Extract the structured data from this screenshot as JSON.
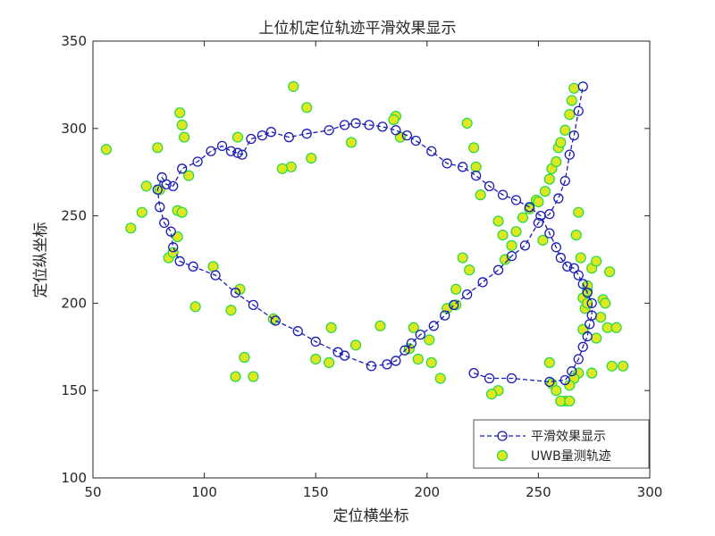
{
  "chart_data": {
    "type": "scatter",
    "title": "上位机定位轨迹平滑效果显示",
    "xlabel": "定位横坐标",
    "ylabel": "定位纵坐标",
    "xlim": [
      50,
      300
    ],
    "ylim": [
      100,
      350
    ],
    "xticks": [
      50,
      100,
      150,
      200,
      250,
      300
    ],
    "yticks": [
      100,
      150,
      200,
      250,
      300,
      350
    ],
    "x_tick_labels": [
      "50",
      "100",
      "150",
      "200",
      "250",
      "300"
    ],
    "y_tick_labels": [
      "100",
      "150",
      "200",
      "250",
      "300",
      "350"
    ],
    "grid": false,
    "box": true,
    "legend_position": "bottom-right",
    "series": [
      {
        "name": "平滑效果显示",
        "style": "dashed-line-circle-markers",
        "color": "#1c1cb4",
        "x": [
          221,
          228,
          238,
          255,
          262,
          265,
          268,
          270,
          272,
          273,
          274,
          274,
          272,
          270,
          268,
          266,
          263,
          260,
          258,
          255,
          251,
          246,
          240,
          234,
          228,
          222,
          216,
          209,
          202,
          195,
          191,
          186,
          180,
          174,
          168,
          163,
          156,
          146,
          138,
          130,
          126,
          121,
          117,
          115,
          112,
          108,
          103,
          97,
          90,
          86,
          83,
          81,
          79,
          80,
          82,
          85,
          86,
          89,
          95,
          105,
          114,
          122,
          132,
          142,
          150,
          160,
          163,
          175,
          182,
          186,
          190,
          193,
          197,
          203,
          208,
          212,
          218,
          225,
          232,
          238,
          244,
          250,
          255,
          259,
          262,
          264,
          266,
          268,
          270
        ],
        "y": [
          160,
          157,
          157,
          155,
          156,
          161,
          168,
          175,
          181,
          188,
          193,
          200,
          206,
          211,
          216,
          220,
          221,
          226,
          232,
          240,
          250,
          255,
          259,
          262,
          267,
          273,
          278,
          280,
          287,
          293,
          296,
          299,
          301,
          302,
          303,
          302,
          299,
          297,
          295,
          298,
          296,
          294,
          285,
          286,
          287,
          290,
          287,
          281,
          277,
          267,
          268,
          272,
          265,
          255,
          246,
          241,
          232,
          224,
          221,
          216,
          206,
          199,
          190,
          184,
          178,
          172,
          170,
          164,
          165,
          167,
          173,
          177,
          182,
          187,
          193,
          199,
          205,
          212,
          219,
          227,
          233,
          246,
          251,
          260,
          270,
          285,
          296,
          310,
          324
        ]
      },
      {
        "name": "UWB量测轨迹",
        "style": "filled-circle-markers",
        "color": "#dde820",
        "edge_color": "#22d84a",
        "x": [
          56,
          67,
          72,
          74,
          79,
          80,
          84,
          86,
          88,
          89,
          90,
          91,
          93,
          88,
          90,
          96,
          104,
          112,
          114,
          115,
          116,
          118,
          122,
          131,
          140,
          139,
          146,
          135,
          148,
          150,
          156,
          157,
          166,
          168,
          179,
          186,
          185,
          188,
          192,
          194,
          196,
          201,
          202,
          206,
          209,
          213,
          216,
          219,
          218,
          221,
          222,
          224,
          232,
          234,
          235,
          238,
          240,
          243,
          246,
          249,
          250,
          252,
          253,
          255,
          256,
          258,
          259,
          260,
          262,
          264,
          265,
          266,
          267,
          268,
          269,
          270,
          271,
          272,
          274,
          276,
          278,
          279,
          281,
          283,
          285,
          288,
          262,
          256,
          255,
          260,
          264,
          268,
          270,
          272,
          274,
          276,
          280,
          282,
          272,
          266,
          264,
          258,
          232,
          229,
          213
        ],
        "y": [
          288,
          243,
          252,
          267,
          289,
          265,
          226,
          229,
          238,
          309,
          302,
          295,
          273,
          253,
          252,
          198,
          221,
          196,
          158,
          295,
          208,
          169,
          158,
          191,
          324,
          278,
          312,
          277,
          283,
          168,
          166,
          186,
          292,
          176,
          187,
          307,
          305,
          295,
          174,
          186,
          168,
          179,
          166,
          157,
          197,
          208,
          226,
          219,
          303,
          289,
          278,
          262,
          247,
          239,
          225,
          233,
          241,
          249,
          254,
          259,
          258,
          236,
          264,
          271,
          277,
          281,
          289,
          292,
          299,
          308,
          316,
          323,
          239,
          252,
          226,
          203,
          197,
          207,
          160,
          180,
          192,
          202,
          186,
          164,
          186,
          164,
          144,
          154,
          166,
          144,
          144,
          160,
          185,
          210,
          220,
          224,
          200,
          218,
          200,
          157,
          153,
          150,
          150,
          148,
          199
        ]
      }
    ]
  }
}
